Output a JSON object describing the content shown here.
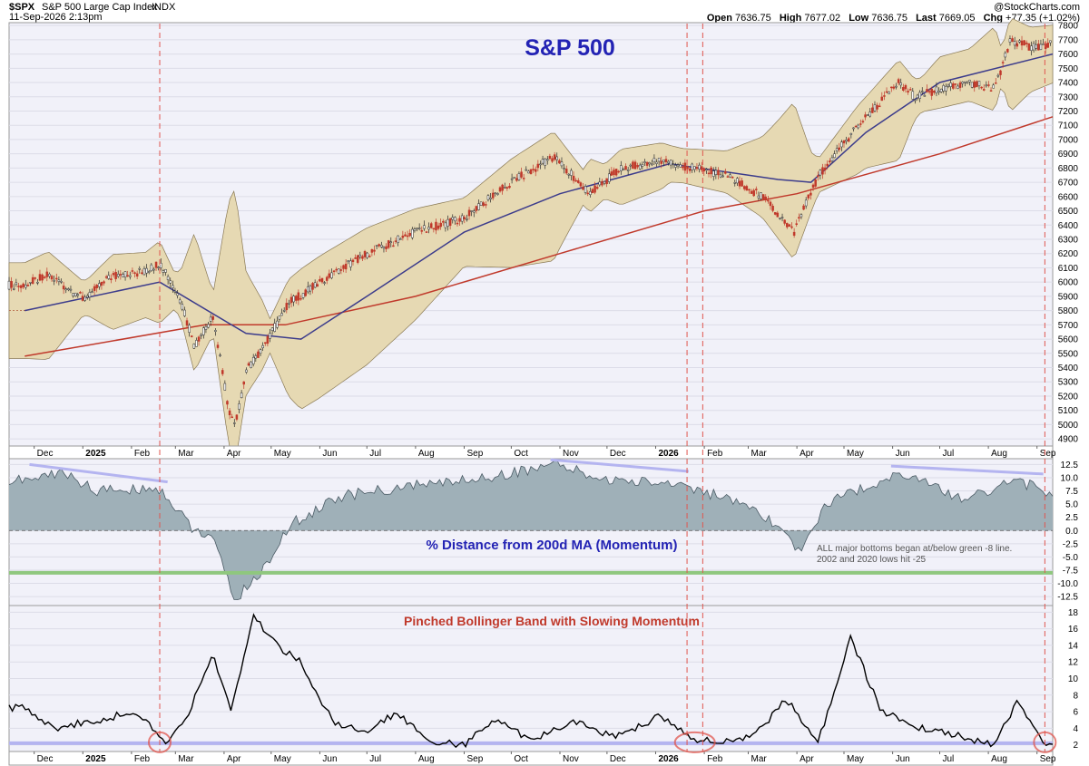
{
  "header": {
    "symbol": "$SPX",
    "name": "S&P 500 Large Cap Index",
    "exchange": "INDX",
    "datetime": "11-Sep-2026 2:13pm",
    "open_label": "Open",
    "open": "7636.75",
    "high_label": "High",
    "high": "7677.02",
    "low_label": "Low",
    "low": "7636.75",
    "last_label": "Last",
    "last": "7669.05",
    "chg_label": "Chg",
    "chg": "+77.35 (+1.02%)",
    "watermark": "@StockCharts.com"
  },
  "colors": {
    "background": "#f1f1f9",
    "band_fill": "#e6d9b3",
    "band_edge": "#8a7a55",
    "ma200": "#c0392b",
    "ma50": "#3c3c8c",
    "momentum_fill": "#9fb0b8",
    "momentum_line": "#4a5a64",
    "green_line": "#8fc77e",
    "trend_line": "#b4b4f0",
    "bandwidth_line": "#000000",
    "vline": "#e0554e",
    "title_blue": "#2323b4",
    "title_red": "#c0392b"
  },
  "chart_data": [
    {
      "type": "candlestick",
      "title": "S&P 500",
      "y_ticks": [
        "7800",
        "7700",
        "7600",
        "7500",
        "7400",
        "7300",
        "7200",
        "7100",
        "7000",
        "6900",
        "6800",
        "6700",
        "6600",
        "6500",
        "6400",
        "6300",
        "6200",
        "6100",
        "6000",
        "5900",
        "5800",
        "5700",
        "5600",
        "5500",
        "5400",
        "5300",
        "5200",
        "5100",
        "5000",
        "4900"
      ],
      "ylim": [
        4850,
        7820
      ],
      "x_labels": [
        "Dec",
        "2025",
        "Feb",
        "Mar",
        "Apr",
        "May",
        "Jun",
        "Jul",
        "Aug",
        "Sep",
        "Oct",
        "Nov",
        "Dec",
        "2026",
        "Feb",
        "Mar",
        "Apr",
        "May",
        "Jun",
        "Jul",
        "Aug",
        "Sep"
      ],
      "series": [
        {
          "name": "Close",
          "x": [
            "2024-11-25",
            "2024-12-10",
            "2025-01-02",
            "2025-01-20",
            "2025-02-10",
            "2025-02-19",
            "2025-03-05",
            "2025-03-13",
            "2025-03-25",
            "2025-04-04",
            "2025-04-08",
            "2025-04-15",
            "2025-04-25",
            "2025-05-12",
            "2025-06-01",
            "2025-07-01",
            "2025-08-01",
            "2025-09-01",
            "2025-10-01",
            "2025-10-28",
            "2025-11-20",
            "2025-12-10",
            "2026-01-05",
            "2026-01-25",
            "2026-02-15",
            "2026-03-10",
            "2026-03-30",
            "2026-04-15",
            "2026-05-10",
            "2026-06-05",
            "2026-06-15",
            "2026-07-01",
            "2026-07-20",
            "2026-08-05",
            "2026-08-15",
            "2026-08-28",
            "2026-09-11"
          ],
          "values": [
            5980,
            6050,
            5880,
            6050,
            6070,
            6140,
            5850,
            5550,
            5760,
            5100,
            4980,
            5380,
            5520,
            5850,
            6000,
            6200,
            6350,
            6450,
            6700,
            6880,
            6620,
            6800,
            6850,
            6800,
            6750,
            6600,
            6350,
            6750,
            7100,
            7400,
            7300,
            7350,
            7400,
            7350,
            7700,
            7650,
            7669
          ]
        },
        {
          "name": "50-day MA",
          "x": [
            "2024-11-25",
            "2025-02-19",
            "2025-04-15",
            "2025-05-20",
            "2025-07-01",
            "2025-09-01",
            "2025-11-01",
            "2026-01-10",
            "2026-03-20",
            "2026-04-10",
            "2026-05-15",
            "2026-07-01",
            "2026-09-11"
          ],
          "values": [
            5800,
            6000,
            5640,
            5600,
            5900,
            6350,
            6620,
            6830,
            6720,
            6700,
            7050,
            7400,
            7600
          ]
        },
        {
          "name": "200-day MA",
          "x": [
            "2024-11-25",
            "2025-03-20",
            "2025-05-10",
            "2025-08-01",
            "2025-11-01",
            "2026-02-01",
            "2026-04-01",
            "2026-07-01",
            "2026-09-11"
          ],
          "values": [
            5480,
            5700,
            5700,
            5900,
            6200,
            6500,
            6620,
            6900,
            7160
          ]
        }
      ]
    },
    {
      "type": "area",
      "title": "% Distance from 200d MA (Momentum)",
      "y_ticks": [
        "12.5",
        "10.0",
        "7.5",
        "5.0",
        "2.5",
        "0.0",
        "-2.5",
        "-5.0",
        "-7.5",
        "-10.0",
        "-12.5"
      ],
      "ylim": [
        -14.2,
        13.6
      ],
      "reference_line": -8,
      "annotations": [
        "ALL major bottoms began at/below green -8 line.",
        "2002 and 2020 lows hit -25"
      ],
      "series": [
        {
          "name": "% Distance from 200d MA",
          "x": [
            "2024-11-25",
            "2024-12-20",
            "2025-01-10",
            "2025-02-19",
            "2025-03-10",
            "2025-03-25",
            "2025-04-08",
            "2025-04-22",
            "2025-05-15",
            "2025-06-15",
            "2025-08-01",
            "2025-09-15",
            "2025-10-28",
            "2025-12-01",
            "2026-01-15",
            "2026-02-15",
            "2026-03-20",
            "2026-04-02",
            "2026-04-20",
            "2026-06-05",
            "2026-07-15",
            "2026-08-20",
            "2026-09-11"
          ],
          "values": [
            9.5,
            11.0,
            7.5,
            8.0,
            1.0,
            -2.0,
            -13.0,
            -9.0,
            1.5,
            6.5,
            8.5,
            10.0,
            12.5,
            9.5,
            9.0,
            6.0,
            1.0,
            -4.0,
            5.0,
            11.0,
            6.0,
            9.5,
            6.8
          ]
        }
      ]
    },
    {
      "type": "line",
      "title": "Pinched Bollinger Band with Slowing Momentum",
      "y_ticks": [
        "18",
        "16",
        "14",
        "12",
        "10",
        "8",
        "6",
        "4",
        "2"
      ],
      "ylim": [
        1.2,
        18.8
      ],
      "reference_line": 2.2,
      "series": [
        {
          "name": "Bollinger BandWidth",
          "x": [
            "2024-11-25",
            "2024-12-15",
            "2025-01-10",
            "2025-02-05",
            "2025-02-22",
            "2025-03-10",
            "2025-03-25",
            "2025-04-05",
            "2025-04-20",
            "2025-05-05",
            "2025-05-20",
            "2025-06-10",
            "2025-07-01",
            "2025-07-20",
            "2025-08-10",
            "2025-09-01",
            "2025-09-20",
            "2025-10-15",
            "2025-11-10",
            "2025-12-05",
            "2026-01-05",
            "2026-01-25",
            "2026-02-20",
            "2026-03-10",
            "2026-03-25",
            "2026-04-15",
            "2026-05-05",
            "2026-05-25",
            "2026-06-20",
            "2026-07-15",
            "2026-08-05",
            "2026-08-20",
            "2026-09-05",
            "2026-09-11"
          ],
          "values": [
            6.5,
            4.0,
            5.0,
            6.0,
            2.2,
            6.0,
            13.0,
            6.0,
            17.5,
            14.0,
            12.0,
            4.5,
            3.5,
            6.0,
            2.5,
            2.0,
            5.0,
            2.5,
            5.0,
            3.0,
            5.5,
            2.5,
            2.5,
            4.0,
            7.5,
            2.5,
            15.0,
            6.0,
            4.0,
            3.0,
            2.0,
            7.5,
            2.0,
            2.3
          ]
        }
      ]
    }
  ],
  "timeline": {
    "start": "2024-11-15",
    "end": "2026-09-11"
  },
  "markers": {
    "vlines": [
      "2025-02-19",
      "2026-01-21",
      "2026-01-31",
      "2026-09-06"
    ],
    "circles": [
      "2025-02-19",
      "2026-01-26",
      "2026-09-06"
    ],
    "trend_lines": [
      {
        "panel": "momentum",
        "from": [
          "2024-11-28",
          12.5
        ],
        "to": [
          "2025-02-24",
          9.2
        ]
      },
      {
        "panel": "momentum",
        "from": [
          "2025-10-26",
          13.4
        ],
        "to": [
          "2026-01-22",
          11.2
        ]
      },
      {
        "panel": "momentum",
        "from": [
          "2026-05-31",
          12.2
        ],
        "to": [
          "2026-09-05",
          10.7
        ]
      }
    ]
  }
}
